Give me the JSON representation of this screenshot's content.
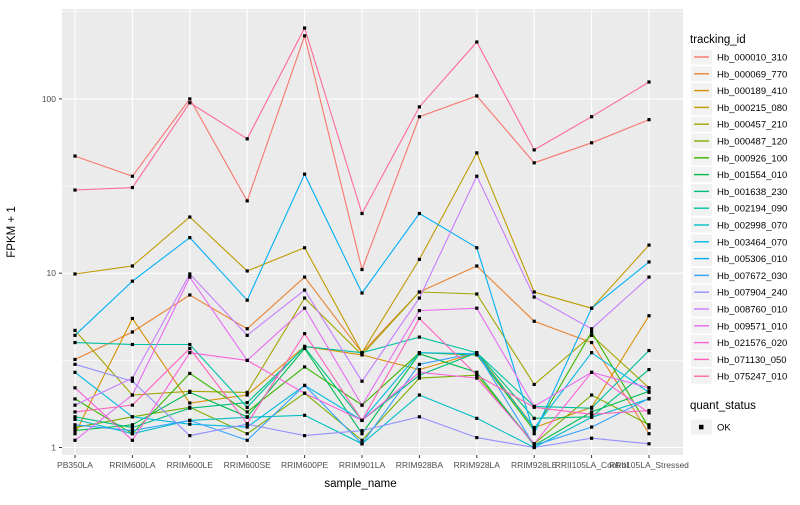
{
  "figure": {
    "background": "#FFFFFF",
    "panel_background": "#EBEBEB",
    "grid_color": "#FFFFFF",
    "axis_text_color": "#4D4D4D",
    "axis_title_color": "#000000",
    "tick_color": "#333333",
    "legend_key_fill": "#F2F2F2"
  },
  "chart_data": {
    "type": "line",
    "title": "",
    "xlabel": "sample_name",
    "ylabel": "FPKM + 1",
    "y_scale": "log10",
    "y_ticks": [
      1,
      10,
      100
    ],
    "y_tick_labels": [
      "1",
      "10",
      "100"
    ],
    "y_minor_ticks": [
      3.162,
      31.62,
      316.2
    ],
    "ylim": [
      0.95,
      330
    ],
    "grid": true,
    "legend_position": "right",
    "point_marker": {
      "shape": "small-black-square",
      "color": "#000000"
    },
    "categories": [
      "PB350LA",
      "RRIM600LA",
      "RRIM600LE",
      "RRIM600SE",
      "RRIM600PE",
      "RRIM901LA",
      "RRIM928BA",
      "RRIM928LA",
      "RRIM928LE",
      "RRII105LA_Control",
      "RRII105LA_Stressed"
    ],
    "legend_tracking": {
      "title": "tracking_id"
    },
    "legend_quant": {
      "title": "quant_status",
      "items": [
        {
          "label": "OK",
          "marker_color": "#000000"
        }
      ]
    },
    "series": [
      {
        "name": "Hb_000010_310",
        "color": "#F8766D",
        "values": [
          47,
          36,
          100,
          26,
          230,
          10.5,
          79,
          104,
          43,
          56,
          76
        ]
      },
      {
        "name": "Hb_000069_770",
        "color": "#EA8331",
        "values": [
          3.2,
          4.6,
          7.5,
          4.8,
          9.5,
          3.5,
          7.8,
          11,
          5.3,
          4.0,
          1.2
        ]
      },
      {
        "name": "Hb_000189_410",
        "color": "#D89000",
        "values": [
          1.2,
          5.5,
          1.8,
          2.0,
          3.8,
          3.4,
          2.8,
          3.5,
          1.3,
          1.7,
          5.7
        ]
      },
      {
        "name": "Hb_000215_080",
        "color": "#C09B00",
        "values": [
          9.9,
          11,
          21,
          10.3,
          14,
          3.5,
          12,
          49,
          7.8,
          6.3,
          14.5
        ]
      },
      {
        "name": "Hb_000457_210",
        "color": "#A3A500",
        "values": [
          4.7,
          2.0,
          2.1,
          2.07,
          7.2,
          3.4,
          7.8,
          7.6,
          2.3,
          4.4,
          2.2
        ]
      },
      {
        "name": "Hb_000487_120",
        "color": "#7CAE00",
        "values": [
          1.3,
          1.5,
          1.7,
          1.2,
          2.05,
          1.1,
          2.5,
          2.6,
          1.05,
          2.0,
          1.35
        ]
      },
      {
        "name": "Hb_000926_100",
        "color": "#39B600",
        "values": [
          1.9,
          1.2,
          2.66,
          1.6,
          2.9,
          1.75,
          3.5,
          3.4,
          1.25,
          4.6,
          1.3
        ]
      },
      {
        "name": "Hb_001554_010",
        "color": "#00BB4E",
        "values": [
          1.25,
          1.35,
          2.07,
          1.5,
          3.7,
          1.2,
          3.45,
          2.7,
          1.03,
          1.6,
          2.1
        ]
      },
      {
        "name": "Hb_001638_230",
        "color": "#00BF7D",
        "values": [
          1.5,
          1.3,
          1.68,
          1.81,
          3.75,
          1.43,
          2.6,
          3.5,
          1.47,
          1.5,
          2.8
        ]
      },
      {
        "name": "Hb_002194_090",
        "color": "#00C1A3",
        "values": [
          4.0,
          3.9,
          3.9,
          1.7,
          3.8,
          3.5,
          4.3,
          3.5,
          1.72,
          1.68,
          3.6
        ]
      },
      {
        "name": "Hb_002998_070",
        "color": "#00BFC4",
        "values": [
          1.45,
          1.2,
          1.43,
          1.49,
          1.53,
          1.05,
          2.0,
          1.47,
          1.0,
          1.49,
          1.9
        ]
      },
      {
        "name": "Hb_003464_070",
        "color": "#00BAE0",
        "values": [
          2.7,
          1.5,
          1.36,
          1.31,
          2.27,
          1.43,
          3.5,
          3.45,
          1.29,
          3.5,
          2.07
        ]
      },
      {
        "name": "Hb_005306_010",
        "color": "#00B0F6",
        "values": [
          4.4,
          9.0,
          16,
          7.0,
          37,
          7.7,
          22,
          14,
          1.2,
          6.3,
          11.6
        ]
      },
      {
        "name": "Hb_007672_030",
        "color": "#35A2FF",
        "values": [
          1.35,
          1.25,
          1.43,
          1.1,
          2.27,
          1.05,
          3.0,
          3.5,
          1.03,
          1.31,
          1.91
        ]
      },
      {
        "name": "Hb_007904_240",
        "color": "#9590FF",
        "values": [
          3.0,
          2.4,
          1.17,
          1.36,
          1.17,
          1.25,
          1.5,
          1.14,
          1.0,
          1.13,
          1.05
        ]
      },
      {
        "name": "Hb_008760_010",
        "color": "#C77CFF",
        "values": [
          1.75,
          2.5,
          9.9,
          4.4,
          8.0,
          2.4,
          7.2,
          36,
          7.3,
          4.8,
          9.5
        ]
      },
      {
        "name": "Hb_009571_010",
        "color": "#E76BF3",
        "values": [
          1.1,
          2.0,
          9.5,
          3.16,
          6.3,
          1.75,
          6.1,
          6.3,
          1.72,
          2.7,
          2.2
        ]
      },
      {
        "name": "Hb_021576_020",
        "color": "#FA62DB",
        "values": [
          2.2,
          1.1,
          3.5,
          3.16,
          2.05,
          1.43,
          2.7,
          2.5,
          1.05,
          2.7,
          1.58
        ]
      },
      {
        "name": "Hb_071130_050",
        "color": "#FF62BC",
        "values": [
          1.6,
          1.75,
          3.7,
          1.37,
          4.5,
          1.43,
          5.5,
          2.6,
          1.7,
          1.55,
          1.63
        ]
      },
      {
        "name": "Hb_075247_010",
        "color": "#FF6A98",
        "values": [
          30,
          31,
          95,
          59,
          255,
          22,
          90,
          212,
          51,
          79,
          125
        ]
      }
    ]
  }
}
